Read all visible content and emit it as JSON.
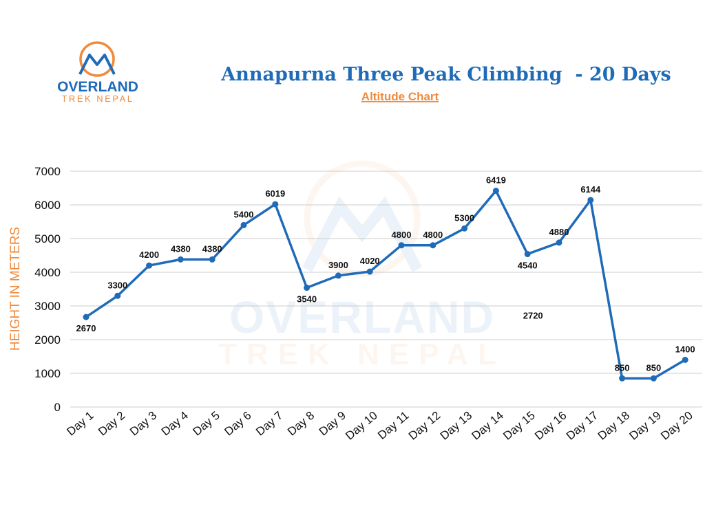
{
  "logo": {
    "brand_line1": "OVERLAND",
    "brand_line2": "TREK NEPAL",
    "watermark_line1": "OVERLAND",
    "watermark_line2": "TREK NEPAL"
  },
  "colors": {
    "line": "#1f6bb8",
    "title": "#1f6bb8",
    "accent_orange": "#f08a3c",
    "grid": "#cccccc"
  },
  "chart_data": {
    "type": "line",
    "title": "Annapurna Three Peak Climbing  - 20 Days",
    "subtitle": "Altitude Chart",
    "ylabel": "HEIGHT IN METERS",
    "xlabel": "",
    "ylim": [
      0,
      7000
    ],
    "yticks": [
      0,
      1000,
      2000,
      3000,
      4000,
      5000,
      6000,
      7000
    ],
    "grid": true,
    "categories": [
      "Day 1",
      "Day 2",
      "Day 3",
      "Day 4",
      "Day 5",
      "Day 6",
      "Day 7",
      "Day 8",
      "Day 9",
      "Day 10",
      "Day 11",
      "Day 12",
      "Day 13",
      "Day 14",
      "Day 15",
      "Day 16",
      "Day 17",
      "Day 18",
      "Day 19",
      "Day 20"
    ],
    "series": [
      {
        "values": [
          2670,
          3300,
          4200,
          4380,
          4380,
          5400,
          6019,
          3540,
          3900,
          4020,
          4800,
          4800,
          5300,
          6419,
          4540,
          4880,
          6144,
          850,
          850,
          1400
        ]
      }
    ],
    "annotations": [
      {
        "text": "2720",
        "x": "Day 15",
        "y": 2720
      }
    ]
  }
}
